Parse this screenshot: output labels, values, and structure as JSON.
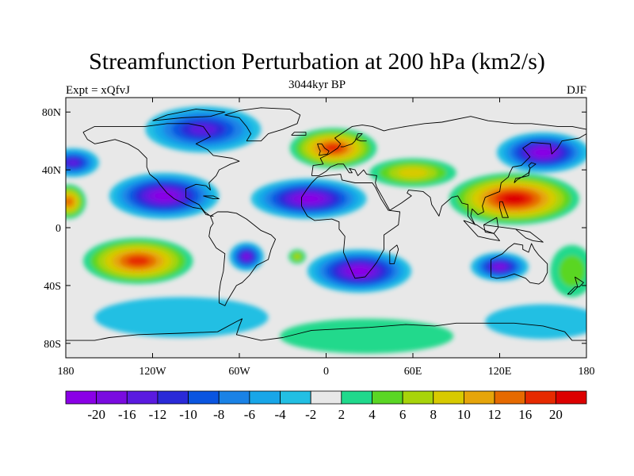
{
  "title": "Streamfunction Perturbation at 200 hPa (km2/s)",
  "subtitle": "3044kyr BP",
  "left_label": "Expt = xQfvJ",
  "right_label": "DJF",
  "map": {
    "lon_range": [
      -180,
      180
    ],
    "lat_range": [
      -90,
      90
    ],
    "lon_ticks": [
      {
        "value": -180,
        "label": "180"
      },
      {
        "value": -120,
        "label": "120W"
      },
      {
        "value": -60,
        "label": "60W"
      },
      {
        "value": 0,
        "label": "0"
      },
      {
        "value": 60,
        "label": "60E"
      },
      {
        "value": 120,
        "label": "120E"
      },
      {
        "value": 180,
        "label": "180"
      }
    ],
    "lat_ticks": [
      {
        "value": 80,
        "label": "80N"
      },
      {
        "value": 40,
        "label": "40N"
      },
      {
        "value": 0,
        "label": "0"
      },
      {
        "value": -40,
        "label": "40S"
      },
      {
        "value": -80,
        "label": "80S"
      }
    ],
    "field_features": [
      {
        "kind": "low",
        "lon": -112,
        "lat": 22,
        "rx": 38,
        "ry": 16,
        "value": -21
      },
      {
        "kind": "low",
        "lon": -12,
        "lat": 20,
        "rx": 40,
        "ry": 14,
        "value": -21
      },
      {
        "kind": "low",
        "lon": 23,
        "lat": -30,
        "rx": 36,
        "ry": 15,
        "value": -21
      },
      {
        "kind": "low",
        "lon": 150,
        "lat": 52,
        "rx": 32,
        "ry": 14,
        "value": -20
      },
      {
        "kind": "low",
        "lon": -55,
        "lat": -20,
        "rx": 12,
        "ry": 10,
        "value": -18
      },
      {
        "kind": "low",
        "lon": 120,
        "lat": -27,
        "rx": 20,
        "ry": 10,
        "value": -16
      },
      {
        "kind": "low",
        "lon": -175,
        "lat": 45,
        "rx": 18,
        "ry": 10,
        "value": -14
      },
      {
        "kind": "low",
        "lon": -85,
        "lat": 68,
        "rx": 40,
        "ry": 16,
        "value": -12
      },
      {
        "kind": "low",
        "lon": 150,
        "lat": -65,
        "rx": 40,
        "ry": 12,
        "value": -3
      },
      {
        "kind": "low",
        "lon": -100,
        "lat": -62,
        "rx": 60,
        "ry": 14,
        "value": -3
      },
      {
        "kind": "high",
        "lon": 130,
        "lat": 20,
        "rx": 45,
        "ry": 18,
        "value": 22
      },
      {
        "kind": "high",
        "lon": -130,
        "lat": -23,
        "rx": 38,
        "ry": 16,
        "value": 18
      },
      {
        "kind": "high",
        "lon": 5,
        "lat": 55,
        "rx": 30,
        "ry": 14,
        "value": 16
      },
      {
        "kind": "high",
        "lon": -178,
        "lat": 18,
        "rx": 12,
        "ry": 12,
        "value": 14
      },
      {
        "kind": "high",
        "lon": 60,
        "lat": 38,
        "rx": 30,
        "ry": 10,
        "value": 9
      },
      {
        "kind": "high",
        "lon": 28,
        "lat": -75,
        "rx": 60,
        "ry": 12,
        "value": 3
      },
      {
        "kind": "high",
        "lon": -20,
        "lat": -20,
        "rx": 6,
        "ry": 5,
        "value": 6
      },
      {
        "kind": "high",
        "lon": 170,
        "lat": -30,
        "rx": 15,
        "ry": 18,
        "value": 4
      }
    ]
  },
  "colorbar": {
    "colors": [
      "#8a00e6",
      "#7a0be0",
      "#5a1ae0",
      "#2a2ad8",
      "#0a55e0",
      "#1a82e6",
      "#18a6e8",
      "#22bfe3",
      "#e8e8e8",
      "#20d98c",
      "#5ad624",
      "#a8d40a",
      "#d8ca00",
      "#e6a50a",
      "#e66a00",
      "#e62a00",
      "#dd0000"
    ],
    "labels": [
      "-20",
      "-16",
      "-12",
      "-10",
      "-8",
      "-6",
      "-4",
      "-2",
      "2",
      "4",
      "6",
      "8",
      "10",
      "12",
      "16",
      "20"
    ],
    "levels": [
      -20,
      -16,
      -12,
      -10,
      -8,
      -6,
      -4,
      -2,
      2,
      4,
      6,
      8,
      10,
      12,
      16,
      20
    ]
  }
}
